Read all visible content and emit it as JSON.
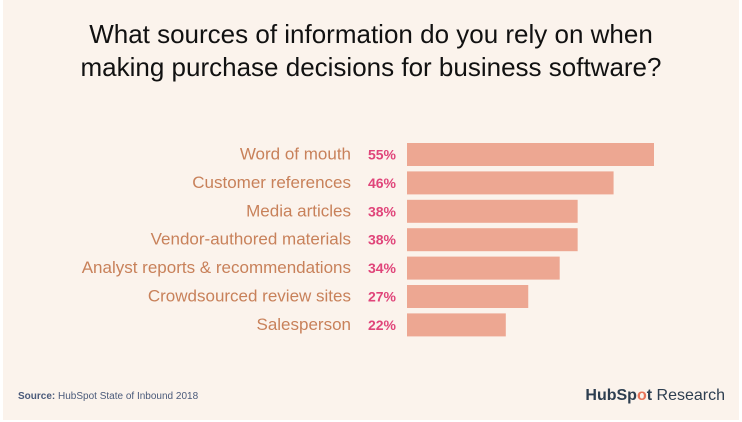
{
  "title": {
    "line1": "What sources of information do you rely on when",
    "line2": "making purchase decisions for business software?"
  },
  "source": {
    "label": "Source:",
    "text": "HubSpot State of Inbound 2018"
  },
  "brand": {
    "hub": "HubSp",
    "sprocket_glyph": "o",
    "t": "t",
    "research": "Research"
  },
  "colors": {
    "background": "#fbf3ec",
    "bar": "#eda792",
    "category_text": "#c8815a",
    "value_text": "#e0457a"
  },
  "chart_data": {
    "type": "bar",
    "orientation": "horizontal",
    "title": "What sources of information do you rely on when making purchase decisions for business software?",
    "categories": [
      "Word of mouth",
      "Customer references",
      "Media articles",
      "Vendor-authored materials",
      "Analyst reports & recommendations",
      "Crowdsourced review sites",
      "Salesperson"
    ],
    "values": [
      55,
      46,
      38,
      38,
      34,
      27,
      22
    ],
    "value_labels": [
      "55%",
      "46%",
      "38%",
      "38%",
      "34%",
      "27%",
      "22%"
    ],
    "unit": "%",
    "xlim": [
      0,
      55
    ],
    "grid": false,
    "legend": "none"
  }
}
